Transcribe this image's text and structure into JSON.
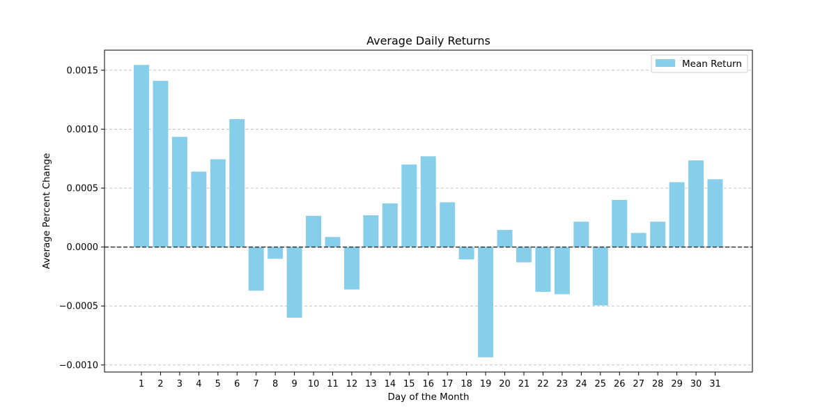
{
  "chart_data": {
    "type": "bar",
    "title": "Average Daily Returns",
    "xlabel": "Day of the Month",
    "ylabel": "Average Percent Change",
    "categories": [
      "1",
      "2",
      "3",
      "4",
      "5",
      "6",
      "7",
      "8",
      "9",
      "10",
      "11",
      "12",
      "13",
      "14",
      "15",
      "16",
      "17",
      "18",
      "19",
      "20",
      "21",
      "22",
      "23",
      "24",
      "25",
      "26",
      "27",
      "28",
      "29",
      "30",
      "31"
    ],
    "series": [
      {
        "name": "Mean Return",
        "color": "#87ceeb",
        "values": [
          0.001545,
          0.00141,
          0.000935,
          0.00064,
          0.000745,
          0.001085,
          -0.00037,
          -0.0001,
          -0.0006,
          0.000265,
          8.5e-05,
          -0.00036,
          0.00027,
          0.00037,
          0.0007,
          0.00077,
          0.00038,
          -0.000105,
          -0.000935,
          0.000145,
          -0.00013,
          -0.00038,
          -0.0004,
          0.000215,
          -0.000495,
          0.0004,
          0.00012,
          0.000215,
          0.00055,
          0.000735,
          0.000575
        ]
      }
    ],
    "ylim": [
      -0.00106,
      0.00167
    ],
    "yticks": [
      -0.001,
      -0.0005,
      0.0,
      0.0005,
      0.001,
      0.0015
    ],
    "ytick_labels": [
      "−0.0010",
      "−0.0005",
      "0.0000",
      "0.0005",
      "0.0010",
      "0.0015"
    ],
    "grid": "y-dashed",
    "zero_line": "dashed",
    "legend_position": "upper right"
  }
}
